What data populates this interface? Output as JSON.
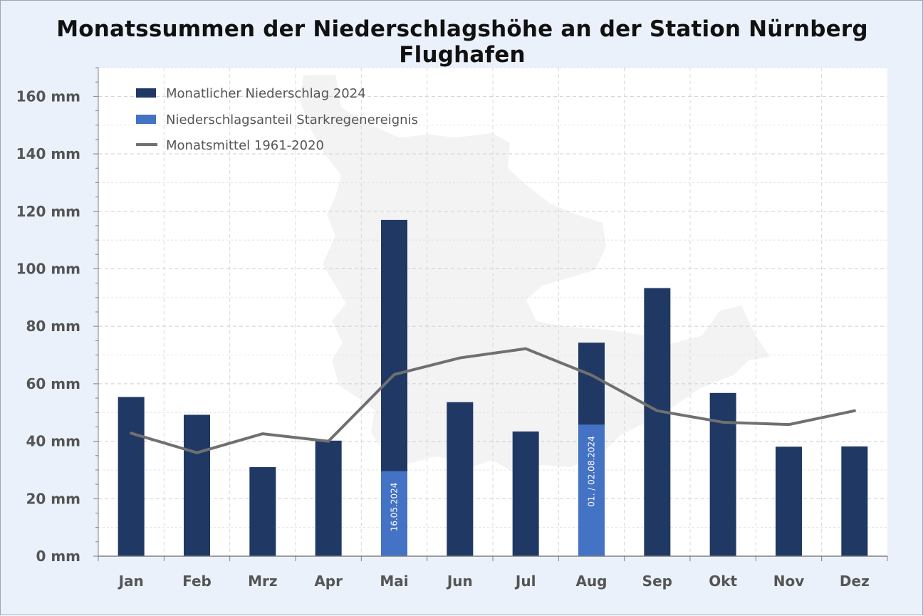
{
  "chart_data": {
    "type": "bar",
    "title": "Monatssummen der Niederschlagshöhe an der Station Nürnberg Flughafen",
    "xlabel": "",
    "ylabel": "",
    "ylim": [
      0,
      170
    ],
    "yticks": [
      0,
      20,
      40,
      60,
      80,
      100,
      120,
      140,
      160
    ],
    "yunit": "mm",
    "categories": [
      "Jan",
      "Feb",
      "Mrz",
      "Apr",
      "Mai",
      "Jun",
      "Jul",
      "Aug",
      "Sep",
      "Okt",
      "Nov",
      "Dez"
    ],
    "series": [
      {
        "name": "Monatlicher Niederschlag 2024",
        "kind": "bar",
        "color": "#1f3864",
        "values": [
          55.4,
          49.2,
          31.0,
          40.2,
          117.0,
          53.6,
          43.4,
          74.3,
          93.3,
          56.8,
          38.1,
          38.2
        ]
      },
      {
        "name": "Niederschlagsanteil Starkregenereignis",
        "kind": "bar-overlay",
        "color": "#4472c4",
        "values": [
          0,
          0,
          0,
          0,
          29.6,
          0,
          0,
          45.8,
          0,
          0,
          0,
          0
        ],
        "labels": [
          "",
          "",
          "",
          "",
          "16.05.2024",
          "",
          "",
          "01. / 02.08.2024",
          "",
          "",
          "",
          ""
        ]
      },
      {
        "name": "Monatsmittel 1961-2020",
        "kind": "line",
        "color": "#707070",
        "values": [
          42.8,
          36.0,
          42.6,
          40.0,
          63.2,
          69.0,
          72.2,
          63.0,
          50.6,
          46.6,
          45.8,
          50.6
        ]
      }
    ],
    "legend_position": "top-left",
    "grid": true
  }
}
